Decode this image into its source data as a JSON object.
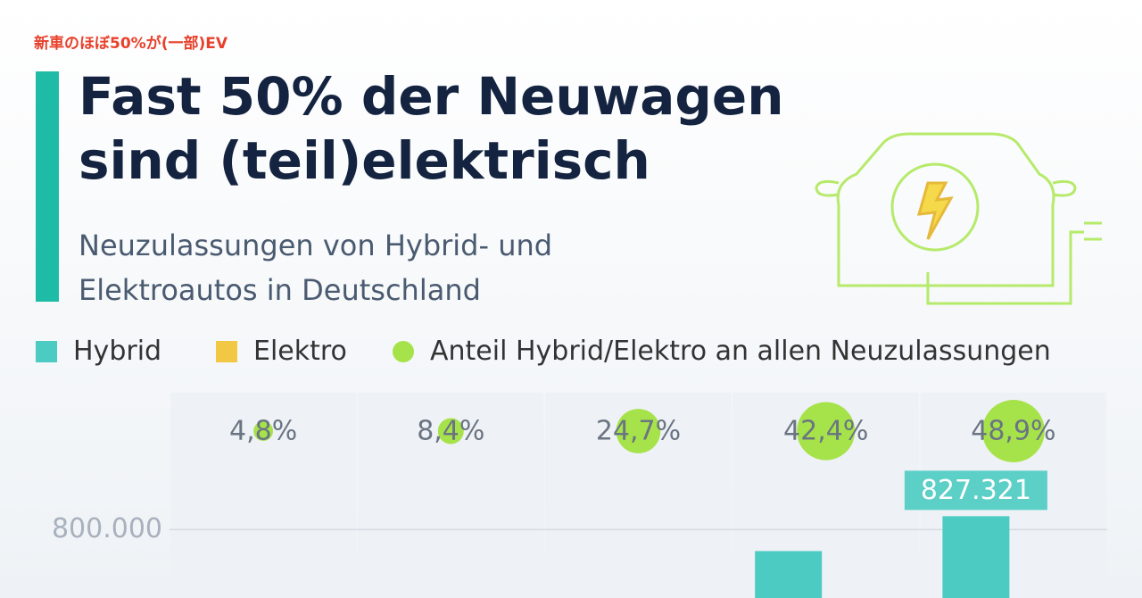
{
  "chart_data": {
    "type": "bar",
    "annotation": "新車のほぼ50%が(一部)EV",
    "title": "Fast 50% der Neuwagen sind (teil)elektrisch",
    "subtitle": "Neuzulassungen von Hybrid- und Elektroautos in Deutschland",
    "categories": [
      null,
      null,
      null,
      null,
      null
    ],
    "series": [
      {
        "name": "Hybrid",
        "color": "#4ccbc3",
        "values": [
          null,
          null,
          null,
          756000,
          827321
        ],
        "value_labels": [
          null,
          null,
          null,
          null,
          "827.321"
        ]
      },
      {
        "name": "Elektro",
        "color": "#f2c744",
        "values": [
          null,
          null,
          null,
          null,
          null
        ]
      },
      {
        "name": "Anteil Hybrid/Elektro an allen Neuzulassungen",
        "color": "#a6e34a",
        "values": [
          4.8,
          8.4,
          24.7,
          42.4,
          48.9
        ],
        "value_labels": [
          "4,8%",
          "8,4%",
          "24,7%",
          "42,4%",
          "48,9%"
        ]
      }
    ],
    "ylim": [
      660000,
      1080000
    ],
    "yticks": [
      {
        "value": 800000,
        "label": "800.000"
      }
    ],
    "grid": true
  }
}
